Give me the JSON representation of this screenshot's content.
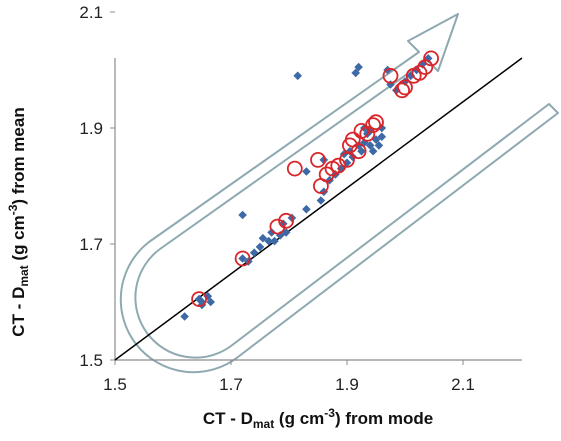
{
  "chart_data": {
    "type": "scatter",
    "title": "",
    "xlabel": {
      "prefix": "CT - D",
      "sub": "mat",
      "mid": " (g cm",
      "sup": "-3",
      "suffix": ") from mode"
    },
    "ylabel": {
      "prefix": "CT - D",
      "sub": "mat",
      "mid": " (g cm",
      "sup": "-3",
      "suffix": ") from mean"
    },
    "xlim": [
      1.5,
      2.2
    ],
    "ylim": [
      1.5,
      2.2
    ],
    "xticks": [
      "1.5",
      "1.7",
      "1.9",
      "2.1"
    ],
    "yticks": [
      "1.5",
      "1.7",
      "1.9",
      "2.1"
    ],
    "grid": false,
    "reference_line": {
      "name": "1:1",
      "from": [
        1.5,
        1.5
      ],
      "to": [
        2.2,
        2.2
      ],
      "color": "#000000"
    },
    "series": [
      {
        "marker": "diamond",
        "color": "#3d6aa6",
        "points": [
          [
            1.62,
            1.575
          ],
          [
            1.645,
            1.605
          ],
          [
            1.65,
            1.595
          ],
          [
            1.66,
            1.61
          ],
          [
            1.665,
            1.6
          ],
          [
            1.72,
            1.675
          ],
          [
            1.72,
            1.75
          ],
          [
            1.73,
            1.67
          ],
          [
            1.74,
            1.685
          ],
          [
            1.75,
            1.695
          ],
          [
            1.755,
            1.71
          ],
          [
            1.765,
            1.705
          ],
          [
            1.77,
            1.72
          ],
          [
            1.775,
            1.705
          ],
          [
            1.785,
            1.715
          ],
          [
            1.79,
            1.735
          ],
          [
            1.795,
            1.72
          ],
          [
            1.805,
            1.745
          ],
          [
            1.815,
            1.99
          ],
          [
            1.83,
            1.76
          ],
          [
            1.855,
            1.775
          ],
          [
            1.86,
            1.79
          ],
          [
            1.87,
            1.81
          ],
          [
            1.88,
            1.82
          ],
          [
            1.89,
            1.83
          ],
          [
            1.9,
            1.84
          ],
          [
            1.905,
            1.86
          ],
          [
            1.91,
            1.85
          ],
          [
            1.915,
            1.995
          ],
          [
            1.92,
            2.005
          ],
          [
            1.92,
            1.87
          ],
          [
            1.925,
            1.86
          ],
          [
            1.93,
            1.875
          ],
          [
            1.935,
            1.89
          ],
          [
            1.94,
            1.87
          ],
          [
            1.945,
            1.86
          ],
          [
            1.95,
            1.88
          ],
          [
            1.955,
            1.87
          ],
          [
            1.96,
            1.885
          ],
          [
            1.97,
            2.0
          ],
          [
            1.975,
            1.975
          ],
          [
            1.985,
            1.965
          ],
          [
            2.0,
            1.98
          ],
          [
            2.01,
            1.99
          ],
          [
            2.02,
            2.0
          ],
          [
            2.03,
            2.01
          ],
          [
            2.04,
            2.02
          ],
          [
            1.65,
            1.6
          ],
          [
            1.83,
            1.825
          ],
          [
            1.86,
            1.845
          ],
          [
            1.895,
            1.855
          ],
          [
            1.93,
            1.9
          ],
          [
            1.94,
            1.895
          ],
          [
            1.96,
            1.9
          ]
        ]
      },
      {
        "marker": "circle-outline",
        "color": "#d9262a",
        "points": [
          [
            1.645,
            1.605
          ],
          [
            1.72,
            1.675
          ],
          [
            1.78,
            1.73
          ],
          [
            1.795,
            1.74
          ],
          [
            1.81,
            1.83
          ],
          [
            1.85,
            1.845
          ],
          [
            1.855,
            1.8
          ],
          [
            1.865,
            1.82
          ],
          [
            1.875,
            1.83
          ],
          [
            1.885,
            1.835
          ],
          [
            1.9,
            1.845
          ],
          [
            1.905,
            1.87
          ],
          [
            1.91,
            1.88
          ],
          [
            1.92,
            1.86
          ],
          [
            1.925,
            1.895
          ],
          [
            1.935,
            1.89
          ],
          [
            1.945,
            1.905
          ],
          [
            1.95,
            1.91
          ],
          [
            1.975,
            1.99
          ],
          [
            1.995,
            1.965
          ],
          [
            2.0,
            1.97
          ],
          [
            2.015,
            1.99
          ],
          [
            2.025,
            1.995
          ],
          [
            2.035,
            2.005
          ],
          [
            2.045,
            2.02
          ]
        ]
      }
    ],
    "annotation": {
      "type": "u-shaped outline arrow pointing to upper right",
      "color": "#8fa9b1"
    }
  }
}
